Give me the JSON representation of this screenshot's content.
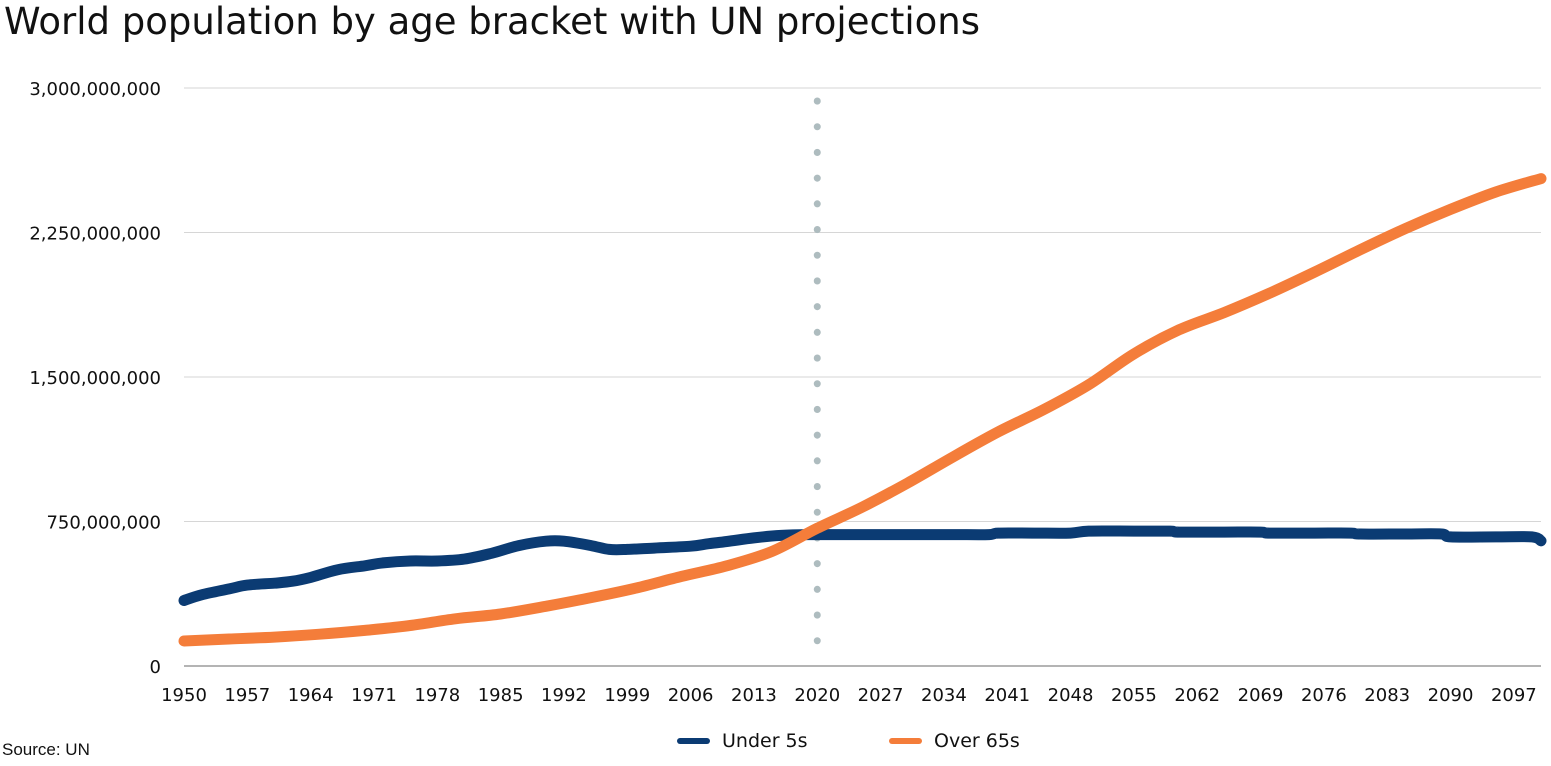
{
  "chart_data": {
    "type": "line",
    "title": "World population by age bracket with UN projections",
    "xlabel": "",
    "ylabel": "",
    "xlim": [
      1950,
      2100
    ],
    "ylim": [
      0,
      3000000000
    ],
    "y_ticks": [
      0,
      750000000,
      1500000000,
      2250000000,
      3000000000
    ],
    "y_tick_labels": [
      "0",
      "750,000,000",
      "1,500,000,000",
      "2,250,000,000",
      "3,000,000,000"
    ],
    "x_tick_labels": [
      "1950",
      "1957",
      "1964",
      "1971",
      "1978",
      "1985",
      "1992",
      "1999",
      "2006",
      "2013",
      "2020",
      "2027",
      "2034",
      "2041",
      "2048",
      "2055",
      "2062",
      "2069",
      "2076",
      "2083",
      "2090",
      "2097"
    ],
    "grid": true,
    "legend_position": "bottom",
    "projection_marker_year": 2020,
    "series": [
      {
        "name": "Under 5s",
        "color": "#0b3b73",
        "points": [
          [
            1950,
            340000000
          ],
          [
            1952,
            370000000
          ],
          [
            1955,
            400000000
          ],
          [
            1957,
            420000000
          ],
          [
            1960,
            430000000
          ],
          [
            1962,
            440000000
          ],
          [
            1964,
            460000000
          ],
          [
            1967,
            500000000
          ],
          [
            1970,
            520000000
          ],
          [
            1972,
            535000000
          ],
          [
            1975,
            545000000
          ],
          [
            1978,
            545000000
          ],
          [
            1981,
            555000000
          ],
          [
            1984,
            585000000
          ],
          [
            1987,
            625000000
          ],
          [
            1990,
            648000000
          ],
          [
            1992,
            648000000
          ],
          [
            1995,
            625000000
          ],
          [
            1997,
            605000000
          ],
          [
            1999,
            605000000
          ],
          [
            2002,
            612000000
          ],
          [
            2006,
            622000000
          ],
          [
            2008,
            635000000
          ],
          [
            2010,
            646000000
          ],
          [
            2013,
            665000000
          ],
          [
            2016,
            678000000
          ],
          [
            2019,
            682000000
          ],
          [
            2025,
            682000000
          ],
          [
            2030,
            682000000
          ],
          [
            2035,
            682000000
          ],
          [
            2039,
            682000000
          ],
          [
            2040,
            690000000
          ],
          [
            2044,
            690000000
          ],
          [
            2048,
            690000000
          ],
          [
            2050,
            700000000
          ],
          [
            2055,
            700000000
          ],
          [
            2059,
            700000000
          ],
          [
            2060,
            695000000
          ],
          [
            2065,
            695000000
          ],
          [
            2069,
            695000000
          ],
          [
            2070,
            690000000
          ],
          [
            2075,
            690000000
          ],
          [
            2079,
            690000000
          ],
          [
            2080,
            685000000
          ],
          [
            2085,
            685000000
          ],
          [
            2089,
            685000000
          ],
          [
            2090,
            670000000
          ],
          [
            2095,
            670000000
          ],
          [
            2099,
            670000000
          ],
          [
            2100,
            650000000
          ]
        ]
      },
      {
        "name": "Over 65s",
        "color": "#f47d3a",
        "points": [
          [
            1950,
            130000000
          ],
          [
            1955,
            140000000
          ],
          [
            1960,
            150000000
          ],
          [
            1965,
            165000000
          ],
          [
            1970,
            185000000
          ],
          [
            1975,
            210000000
          ],
          [
            1980,
            245000000
          ],
          [
            1985,
            270000000
          ],
          [
            1990,
            310000000
          ],
          [
            1995,
            355000000
          ],
          [
            2000,
            405000000
          ],
          [
            2005,
            465000000
          ],
          [
            2010,
            520000000
          ],
          [
            2015,
            595000000
          ],
          [
            2020,
            715000000
          ],
          [
            2025,
            825000000
          ],
          [
            2030,
            950000000
          ],
          [
            2035,
            1085000000
          ],
          [
            2040,
            1215000000
          ],
          [
            2045,
            1330000000
          ],
          [
            2050,
            1460000000
          ],
          [
            2055,
            1620000000
          ],
          [
            2060,
            1745000000
          ],
          [
            2065,
            1835000000
          ],
          [
            2070,
            1935000000
          ],
          [
            2075,
            2045000000
          ],
          [
            2080,
            2160000000
          ],
          [
            2085,
            2270000000
          ],
          [
            2090,
            2370000000
          ],
          [
            2095,
            2460000000
          ],
          [
            2100,
            2530000000
          ]
        ]
      }
    ]
  },
  "source_text": "Source: UN"
}
